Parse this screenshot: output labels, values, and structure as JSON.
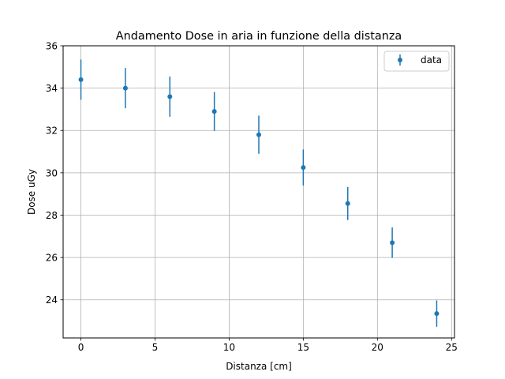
{
  "chart_data": {
    "type": "scatter",
    "title": "Andamento Dose in aria in funzione della distanza",
    "xlabel": "Distanza [cm]",
    "ylabel": "Dose uGy",
    "xlim": [
      -1.2,
      25.2
    ],
    "ylim": [
      22.2,
      36
    ],
    "xticks": [
      0,
      5,
      10,
      15,
      20,
      25
    ],
    "yticks": [
      24,
      26,
      28,
      30,
      32,
      34,
      36
    ],
    "grid": true,
    "legend_position": "top-right",
    "series": [
      {
        "name": "data",
        "color": "#1f77b4",
        "marker": "circle",
        "x": [
          0,
          3,
          6,
          9,
          12,
          15,
          18,
          21,
          24
        ],
        "y": [
          34.4,
          34.0,
          33.6,
          32.9,
          31.8,
          30.25,
          28.55,
          26.7,
          23.35
        ],
        "yerr": [
          0.95,
          0.95,
          0.95,
          0.92,
          0.9,
          0.85,
          0.78,
          0.72,
          0.62
        ]
      }
    ]
  }
}
